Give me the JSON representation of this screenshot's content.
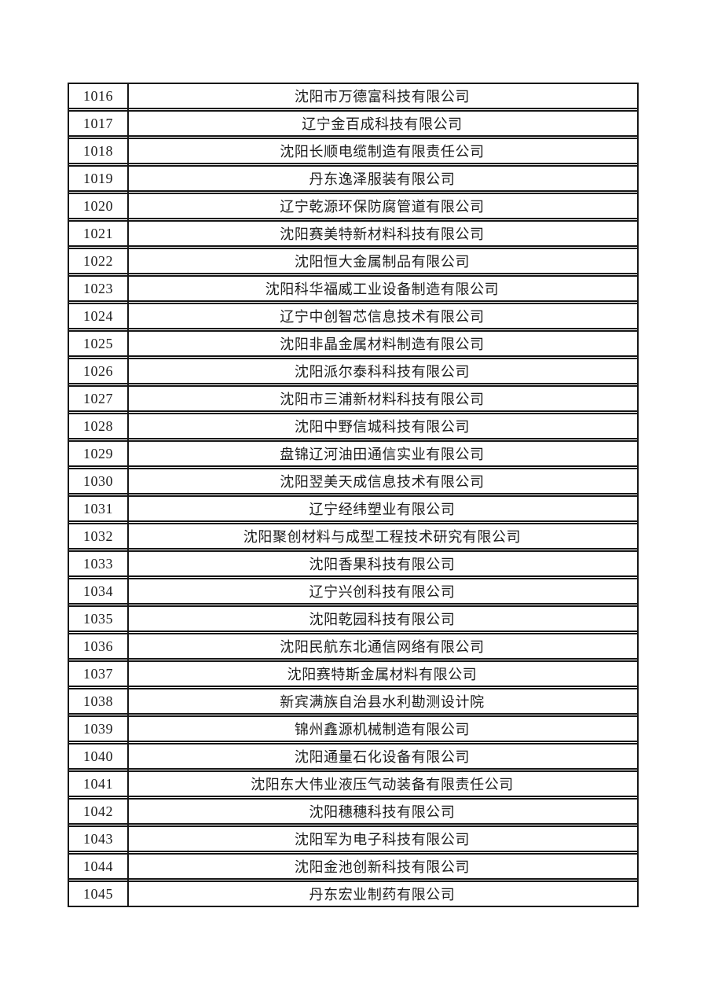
{
  "page": {
    "background": "#ffffff",
    "text_color": "#1c1c1c",
    "border_color": "#161616"
  },
  "table": {
    "rows": [
      {
        "no": "1016",
        "name": "沈阳市万德富科技有限公司"
      },
      {
        "no": "1017",
        "name": "辽宁金百成科技有限公司"
      },
      {
        "no": "1018",
        "name": "沈阳长顺电缆制造有限责任公司"
      },
      {
        "no": "1019",
        "name": "丹东逸泽服装有限公司"
      },
      {
        "no": "1020",
        "name": "辽宁乾源环保防腐管道有限公司"
      },
      {
        "no": "1021",
        "name": "沈阳赛美特新材料科技有限公司"
      },
      {
        "no": "1022",
        "name": "沈阳恒大金属制品有限公司"
      },
      {
        "no": "1023",
        "name": "沈阳科华福威工业设备制造有限公司"
      },
      {
        "no": "1024",
        "name": "辽宁中创智芯信息技术有限公司"
      },
      {
        "no": "1025",
        "name": "沈阳非晶金属材料制造有限公司"
      },
      {
        "no": "1026",
        "name": "沈阳派尔泰科科技有限公司"
      },
      {
        "no": "1027",
        "name": "沈阳市三浦新材料科技有限公司"
      },
      {
        "no": "1028",
        "name": "沈阳中野信城科技有限公司"
      },
      {
        "no": "1029",
        "name": "盘锦辽河油田通信实业有限公司"
      },
      {
        "no": "1030",
        "name": "沈阳翌美天成信息技术有限公司"
      },
      {
        "no": "1031",
        "name": "辽宁经纬塑业有限公司"
      },
      {
        "no": "1032",
        "name": "沈阳聚创材料与成型工程技术研究有限公司"
      },
      {
        "no": "1033",
        "name": "沈阳香果科技有限公司"
      },
      {
        "no": "1034",
        "name": "辽宁兴创科技有限公司"
      },
      {
        "no": "1035",
        "name": "沈阳乾园科技有限公司"
      },
      {
        "no": "1036",
        "name": "沈阳民航东北通信网络有限公司"
      },
      {
        "no": "1037",
        "name": "沈阳赛特斯金属材料有限公司"
      },
      {
        "no": "1038",
        "name": "新宾满族自治县水利勘测设计院"
      },
      {
        "no": "1039",
        "name": "锦州鑫源机械制造有限公司"
      },
      {
        "no": "1040",
        "name": "沈阳通量石化设备有限公司"
      },
      {
        "no": "1041",
        "name": "沈阳东大伟业液压气动装备有限责任公司"
      },
      {
        "no": "1042",
        "name": "沈阳穗穗科技有限公司"
      },
      {
        "no": "1043",
        "name": "沈阳军为电子科技有限公司"
      },
      {
        "no": "1044",
        "name": "沈阳金池创新科技有限公司"
      },
      {
        "no": "1045",
        "name": "丹东宏业制药有限公司"
      }
    ]
  }
}
